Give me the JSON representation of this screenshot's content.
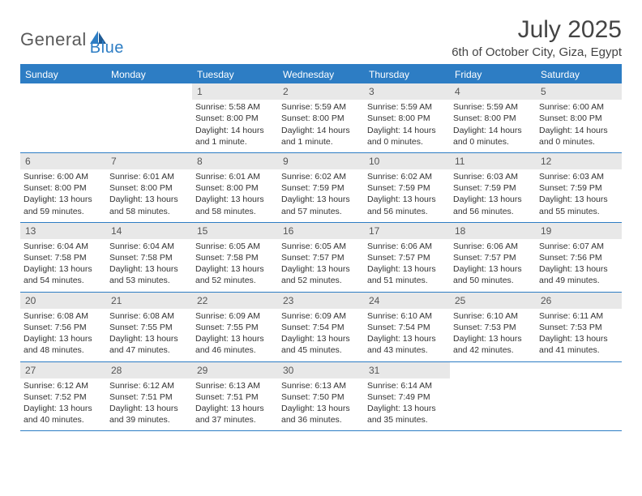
{
  "logo": {
    "text1": "General",
    "text2": "Blue"
  },
  "title": "July 2025",
  "location": "6th of October City, Giza, Egypt",
  "colors": {
    "brand_blue": "#2d7dc4",
    "header_bg": "#2d7dc4",
    "daynum_bg": "#e8e8e8",
    "text": "#333333",
    "logo_gray": "#5a5a5a"
  },
  "typography": {
    "title_fontsize": 30,
    "location_fontsize": 15,
    "dow_fontsize": 12,
    "body_fontsize": 10.5
  },
  "days_of_week": [
    "Sunday",
    "Monday",
    "Tuesday",
    "Wednesday",
    "Thursday",
    "Friday",
    "Saturday"
  ],
  "weeks": [
    [
      {
        "n": "",
        "sunrise": "",
        "sunset": "",
        "daylight": ""
      },
      {
        "n": "",
        "sunrise": "",
        "sunset": "",
        "daylight": ""
      },
      {
        "n": "1",
        "sunrise": "Sunrise: 5:58 AM",
        "sunset": "Sunset: 8:00 PM",
        "daylight": "Daylight: 14 hours and 1 minute."
      },
      {
        "n": "2",
        "sunrise": "Sunrise: 5:59 AM",
        "sunset": "Sunset: 8:00 PM",
        "daylight": "Daylight: 14 hours and 1 minute."
      },
      {
        "n": "3",
        "sunrise": "Sunrise: 5:59 AM",
        "sunset": "Sunset: 8:00 PM",
        "daylight": "Daylight: 14 hours and 0 minutes."
      },
      {
        "n": "4",
        "sunrise": "Sunrise: 5:59 AM",
        "sunset": "Sunset: 8:00 PM",
        "daylight": "Daylight: 14 hours and 0 minutes."
      },
      {
        "n": "5",
        "sunrise": "Sunrise: 6:00 AM",
        "sunset": "Sunset: 8:00 PM",
        "daylight": "Daylight: 14 hours and 0 minutes."
      }
    ],
    [
      {
        "n": "6",
        "sunrise": "Sunrise: 6:00 AM",
        "sunset": "Sunset: 8:00 PM",
        "daylight": "Daylight: 13 hours and 59 minutes."
      },
      {
        "n": "7",
        "sunrise": "Sunrise: 6:01 AM",
        "sunset": "Sunset: 8:00 PM",
        "daylight": "Daylight: 13 hours and 58 minutes."
      },
      {
        "n": "8",
        "sunrise": "Sunrise: 6:01 AM",
        "sunset": "Sunset: 8:00 PM",
        "daylight": "Daylight: 13 hours and 58 minutes."
      },
      {
        "n": "9",
        "sunrise": "Sunrise: 6:02 AM",
        "sunset": "Sunset: 7:59 PM",
        "daylight": "Daylight: 13 hours and 57 minutes."
      },
      {
        "n": "10",
        "sunrise": "Sunrise: 6:02 AM",
        "sunset": "Sunset: 7:59 PM",
        "daylight": "Daylight: 13 hours and 56 minutes."
      },
      {
        "n": "11",
        "sunrise": "Sunrise: 6:03 AM",
        "sunset": "Sunset: 7:59 PM",
        "daylight": "Daylight: 13 hours and 56 minutes."
      },
      {
        "n": "12",
        "sunrise": "Sunrise: 6:03 AM",
        "sunset": "Sunset: 7:59 PM",
        "daylight": "Daylight: 13 hours and 55 minutes."
      }
    ],
    [
      {
        "n": "13",
        "sunrise": "Sunrise: 6:04 AM",
        "sunset": "Sunset: 7:58 PM",
        "daylight": "Daylight: 13 hours and 54 minutes."
      },
      {
        "n": "14",
        "sunrise": "Sunrise: 6:04 AM",
        "sunset": "Sunset: 7:58 PM",
        "daylight": "Daylight: 13 hours and 53 minutes."
      },
      {
        "n": "15",
        "sunrise": "Sunrise: 6:05 AM",
        "sunset": "Sunset: 7:58 PM",
        "daylight": "Daylight: 13 hours and 52 minutes."
      },
      {
        "n": "16",
        "sunrise": "Sunrise: 6:05 AM",
        "sunset": "Sunset: 7:57 PM",
        "daylight": "Daylight: 13 hours and 52 minutes."
      },
      {
        "n": "17",
        "sunrise": "Sunrise: 6:06 AM",
        "sunset": "Sunset: 7:57 PM",
        "daylight": "Daylight: 13 hours and 51 minutes."
      },
      {
        "n": "18",
        "sunrise": "Sunrise: 6:06 AM",
        "sunset": "Sunset: 7:57 PM",
        "daylight": "Daylight: 13 hours and 50 minutes."
      },
      {
        "n": "19",
        "sunrise": "Sunrise: 6:07 AM",
        "sunset": "Sunset: 7:56 PM",
        "daylight": "Daylight: 13 hours and 49 minutes."
      }
    ],
    [
      {
        "n": "20",
        "sunrise": "Sunrise: 6:08 AM",
        "sunset": "Sunset: 7:56 PM",
        "daylight": "Daylight: 13 hours and 48 minutes."
      },
      {
        "n": "21",
        "sunrise": "Sunrise: 6:08 AM",
        "sunset": "Sunset: 7:55 PM",
        "daylight": "Daylight: 13 hours and 47 minutes."
      },
      {
        "n": "22",
        "sunrise": "Sunrise: 6:09 AM",
        "sunset": "Sunset: 7:55 PM",
        "daylight": "Daylight: 13 hours and 46 minutes."
      },
      {
        "n": "23",
        "sunrise": "Sunrise: 6:09 AM",
        "sunset": "Sunset: 7:54 PM",
        "daylight": "Daylight: 13 hours and 45 minutes."
      },
      {
        "n": "24",
        "sunrise": "Sunrise: 6:10 AM",
        "sunset": "Sunset: 7:54 PM",
        "daylight": "Daylight: 13 hours and 43 minutes."
      },
      {
        "n": "25",
        "sunrise": "Sunrise: 6:10 AM",
        "sunset": "Sunset: 7:53 PM",
        "daylight": "Daylight: 13 hours and 42 minutes."
      },
      {
        "n": "26",
        "sunrise": "Sunrise: 6:11 AM",
        "sunset": "Sunset: 7:53 PM",
        "daylight": "Daylight: 13 hours and 41 minutes."
      }
    ],
    [
      {
        "n": "27",
        "sunrise": "Sunrise: 6:12 AM",
        "sunset": "Sunset: 7:52 PM",
        "daylight": "Daylight: 13 hours and 40 minutes."
      },
      {
        "n": "28",
        "sunrise": "Sunrise: 6:12 AM",
        "sunset": "Sunset: 7:51 PM",
        "daylight": "Daylight: 13 hours and 39 minutes."
      },
      {
        "n": "29",
        "sunrise": "Sunrise: 6:13 AM",
        "sunset": "Sunset: 7:51 PM",
        "daylight": "Daylight: 13 hours and 37 minutes."
      },
      {
        "n": "30",
        "sunrise": "Sunrise: 6:13 AM",
        "sunset": "Sunset: 7:50 PM",
        "daylight": "Daylight: 13 hours and 36 minutes."
      },
      {
        "n": "31",
        "sunrise": "Sunrise: 6:14 AM",
        "sunset": "Sunset: 7:49 PM",
        "daylight": "Daylight: 13 hours and 35 minutes."
      },
      {
        "n": "",
        "sunrise": "",
        "sunset": "",
        "daylight": ""
      },
      {
        "n": "",
        "sunrise": "",
        "sunset": "",
        "daylight": ""
      }
    ]
  ]
}
